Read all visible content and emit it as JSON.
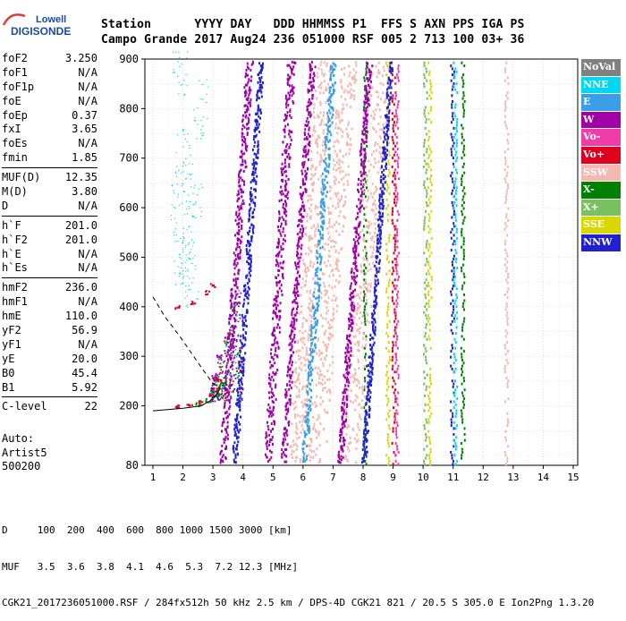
{
  "logo": {
    "line1": "Lowell",
    "line2": "DIGISONDE"
  },
  "header": {
    "row1": "Station      YYYY DAY   DDD HHMMSS P1  FFS S AXN PPS IGA PS",
    "row2": "Campo Grande 2017 Aug24 236 051000 RSF 005 2 713 100 03+ 36"
  },
  "parameters": [
    {
      "group": [
        {
          "name": "foF2",
          "value": "3.250"
        },
        {
          "name": "foF1",
          "value": "N/A"
        },
        {
          "name": "foF1p",
          "value": "N/A"
        },
        {
          "name": "foE",
          "value": "N/A"
        },
        {
          "name": "foEp",
          "value": "0.37"
        },
        {
          "name": "fxI",
          "value": "3.65"
        },
        {
          "name": "foEs",
          "value": "N/A"
        },
        {
          "name": "fmin",
          "value": "1.85"
        }
      ]
    },
    {
      "group": [
        {
          "name": "MUF(D)",
          "value": "12.35"
        },
        {
          "name": "M(D)",
          "value": "3.80"
        },
        {
          "name": "D",
          "value": "N/A"
        }
      ]
    },
    {
      "group": [
        {
          "name": "h`F",
          "value": "201.0"
        },
        {
          "name": "h`F2",
          "value": "201.0"
        },
        {
          "name": "h`E",
          "value": "N/A"
        },
        {
          "name": "h`Es",
          "value": "N/A"
        }
      ]
    },
    {
      "group": [
        {
          "name": "hmF2",
          "value": "236.0"
        },
        {
          "name": "hmF1",
          "value": "N/A"
        },
        {
          "name": "hmE",
          "value": "110.0"
        },
        {
          "name": "yF2",
          "value": "56.9"
        },
        {
          "name": "yF1",
          "value": "N/A"
        },
        {
          "name": "yE",
          "value": "20.0"
        },
        {
          "name": "B0",
          "value": "45.4"
        },
        {
          "name": "B1",
          "value": "5.92"
        }
      ]
    },
    {
      "group": [
        {
          "name": "C-level",
          "value": "22"
        }
      ]
    }
  ],
  "auto": {
    "line1": "Auto:",
    "line2": "Artist5",
    "line3": "500200"
  },
  "legend": [
    {
      "label": "NoVal",
      "color": "#808080"
    },
    {
      "label": "NNE",
      "color": "#00d8f0"
    },
    {
      "label": "E",
      "color": "#3a9ee8"
    },
    {
      "label": "W",
      "color": "#a000a8"
    },
    {
      "label": "Vo-",
      "color": "#f03ca8"
    },
    {
      "label": "Vo+",
      "color": "#e00020"
    },
    {
      "label": "SSW",
      "color": "#f4b8b0"
    },
    {
      "label": "X-",
      "color": "#008000"
    },
    {
      "label": "X+",
      "color": "#78c060"
    },
    {
      "label": "SSE",
      "color": "#d8d800"
    },
    {
      "label": "NNW",
      "color": "#2020d0"
    }
  ],
  "footer": {
    "d_row": "D     100  200  400  600  800 1000 1500 3000 [km]",
    "muf_row": "MUF   3.5  3.6  3.8  4.1  4.6  5.3  7.2 12.3 [MHz]",
    "file_row": "CGK21_2017236051000.RSF / 284fx512h 50 kHz 2.5 km / DPS-4D CGK21 821 / 20.5 S 305.0 E Ion2Png 1.3.20"
  },
  "chart_data": {
    "type": "scatter",
    "xlabel": "",
    "ylabel": "",
    "xlim": [
      0.8,
      15
    ],
    "ylim": [
      80,
      900
    ],
    "xticks": [
      1,
      2,
      3,
      4,
      5,
      6,
      7,
      8,
      9,
      10,
      11,
      12,
      13,
      14,
      15
    ],
    "yticks": [
      80,
      200,
      300,
      400,
      500,
      600,
      700,
      800,
      900
    ],
    "grid": true,
    "legend_position": "right",
    "traces": [
      {
        "name": "F2 O-trace",
        "color": "#e00020",
        "points": [
          [
            1.8,
            200
          ],
          [
            2.2,
            203
          ],
          [
            2.6,
            210
          ],
          [
            2.9,
            222
          ],
          [
            3.05,
            236
          ],
          [
            3.15,
            252
          ]
        ]
      },
      {
        "name": "F2 X-trace",
        "color": "#008000",
        "points": [
          [
            2.5,
            205
          ],
          [
            2.8,
            212
          ],
          [
            3.1,
            225
          ],
          [
            3.3,
            245
          ]
        ]
      },
      {
        "name": "2F",
        "color": "#e00020",
        "points": [
          [
            1.8,
            400
          ],
          [
            2.3,
            410
          ],
          [
            2.8,
            430
          ],
          [
            3.0,
            445
          ]
        ]
      },
      {
        "name": "spread F",
        "color": "#a000a8",
        "points": [
          [
            3.0,
            260
          ],
          [
            3.2,
            300
          ],
          [
            3.4,
            340
          ],
          [
            3.6,
            380
          ],
          [
            3.8,
            410
          ]
        ]
      }
    ],
    "profile_solid": [
      [
        1.0,
        190
      ],
      [
        2.0,
        195
      ],
      [
        2.6,
        200
      ],
      [
        2.9,
        210
      ],
      [
        3.1,
        222
      ],
      [
        3.25,
        236
      ]
    ],
    "profile_dashed": [
      [
        1.0,
        420
      ],
      [
        1.4,
        380
      ],
      [
        1.9,
        340
      ],
      [
        2.3,
        305
      ],
      [
        2.7,
        270
      ],
      [
        3.0,
        245
      ],
      [
        3.25,
        236
      ]
    ],
    "oblique_bands": [
      {
        "color": "#a000a8",
        "x_top": 4.2,
        "x_bottom": 3.3,
        "width": 0.12
      },
      {
        "color": "#2020d0",
        "x_top": 4.6,
        "x_bottom": 3.7,
        "width": 0.1
      },
      {
        "color": "#a000a8",
        "x_top": 5.6,
        "x_bottom": 4.8,
        "width": 0.14
      },
      {
        "color": "#f4b8b0",
        "x_top": 6.7,
        "x_bottom": 5.7,
        "width": 0.25
      },
      {
        "color": "#a000a8",
        "x_top": 6.3,
        "x_bottom": 5.3,
        "width": 0.1
      },
      {
        "color": "#f4b8b0",
        "x_top": 7.5,
        "x_bottom": 6.4,
        "width": 0.3
      },
      {
        "color": "#3a9ee8",
        "x_top": 7.0,
        "x_bottom": 6.0,
        "width": 0.1
      },
      {
        "color": "#f4b8b0",
        "x_top": 8.6,
        "x_bottom": 7.5,
        "width": 0.35
      },
      {
        "color": "#a000a8",
        "x_top": 8.2,
        "x_bottom": 7.2,
        "width": 0.1
      },
      {
        "color": "#2020d0",
        "x_top": 8.9,
        "x_bottom": 8.0,
        "width": 0.08
      }
    ],
    "vertical_bands": [
      {
        "x": 8.05,
        "color": "#008000"
      },
      {
        "x": 8.8,
        "color": "#d8d800"
      },
      {
        "x": 9.0,
        "color": "#e00020"
      },
      {
        "x": 9.1,
        "color": "#f03ca8"
      },
      {
        "x": 10.05,
        "color": "#78c060"
      },
      {
        "x": 10.2,
        "color": "#d8d800"
      },
      {
        "x": 10.95,
        "color": "#2020d0"
      },
      {
        "x": 11.05,
        "color": "#00d8f0"
      },
      {
        "x": 11.3,
        "color": "#008000"
      },
      {
        "x": 12.75,
        "color": "#f4b8b0"
      }
    ],
    "cyan_cloud": [
      [
        1.9,
        500
      ],
      [
        2.1,
        480
      ],
      [
        2.3,
        460
      ],
      [
        2.0,
        700
      ],
      [
        2.4,
        640
      ],
      [
        1.8,
        620
      ],
      [
        2.6,
        800
      ],
      [
        2.2,
        560
      ],
      [
        1.9,
        880
      ]
    ]
  }
}
